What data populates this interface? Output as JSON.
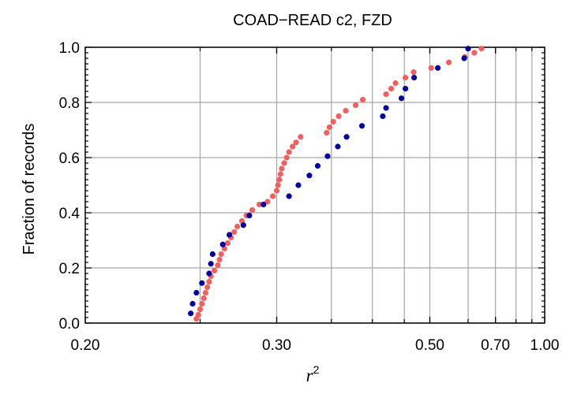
{
  "chart_data": {
    "type": "scatter",
    "title": "COAD−READ c2, FZD",
    "xlabel": "r",
    "xlabel_superscript": "2",
    "ylabel": "Fraction of records",
    "x_scale": "reciprocal",
    "xlim": [
      0.2,
      1.0
    ],
    "ylim": [
      0.0,
      1.0
    ],
    "x_ticks": [
      0.2,
      0.3,
      0.5,
      0.7,
      1.0
    ],
    "x_tick_labels": [
      "0.20",
      "0.30",
      "0.50",
      "0.70",
      "1.00"
    ],
    "x_gridlines": [
      0.25,
      0.3,
      0.35,
      0.4,
      0.45,
      0.5,
      0.6,
      0.7,
      0.8,
      0.9
    ],
    "y_ticks": [
      0.0,
      0.2,
      0.4,
      0.6,
      0.8,
      1.0
    ],
    "y_tick_labels": [
      "0.0",
      "0.2",
      "0.4",
      "0.6",
      "0.8",
      "1.0"
    ],
    "grid": true,
    "series": [
      {
        "color": "#f25f5f",
        "points": [
          [
            0.248,
            0.015
          ],
          [
            0.249,
            0.03
          ],
          [
            0.25,
            0.05
          ],
          [
            0.251,
            0.07
          ],
          [
            0.252,
            0.09
          ],
          [
            0.253,
            0.11
          ],
          [
            0.254,
            0.13
          ],
          [
            0.255,
            0.15
          ],
          [
            0.256,
            0.17
          ],
          [
            0.258,
            0.19
          ],
          [
            0.26,
            0.21
          ],
          [
            0.261,
            0.23
          ],
          [
            0.262,
            0.25
          ],
          [
            0.264,
            0.27
          ],
          [
            0.266,
            0.29
          ],
          [
            0.268,
            0.31
          ],
          [
            0.27,
            0.33
          ],
          [
            0.272,
            0.35
          ],
          [
            0.275,
            0.37
          ],
          [
            0.278,
            0.39
          ],
          [
            0.282,
            0.41
          ],
          [
            0.287,
            0.43
          ],
          [
            0.293,
            0.44
          ],
          [
            0.297,
            0.46
          ],
          [
            0.3,
            0.48
          ],
          [
            0.301,
            0.5
          ],
          [
            0.302,
            0.52
          ],
          [
            0.303,
            0.54
          ],
          [
            0.304,
            0.56
          ],
          [
            0.306,
            0.58
          ],
          [
            0.308,
            0.6
          ],
          [
            0.31,
            0.62
          ],
          [
            0.313,
            0.64
          ],
          [
            0.316,
            0.655
          ],
          [
            0.32,
            0.675
          ],
          [
            0.345,
            0.69
          ],
          [
            0.348,
            0.71
          ],
          [
            0.352,
            0.73
          ],
          [
            0.358,
            0.75
          ],
          [
            0.366,
            0.77
          ],
          [
            0.378,
            0.79
          ],
          [
            0.387,
            0.81
          ],
          [
            0.42,
            0.83
          ],
          [
            0.428,
            0.85
          ],
          [
            0.435,
            0.87
          ],
          [
            0.452,
            0.89
          ],
          [
            0.467,
            0.91
          ],
          [
            0.503,
            0.925
          ],
          [
            0.545,
            0.945
          ],
          [
            0.59,
            0.965
          ],
          [
            0.62,
            0.98
          ],
          [
            0.645,
            0.995
          ]
        ]
      },
      {
        "color": "#00009e",
        "points": [
          [
            0.245,
            0.035
          ],
          [
            0.246,
            0.07
          ],
          [
            0.248,
            0.11
          ],
          [
            0.251,
            0.145
          ],
          [
            0.255,
            0.18
          ],
          [
            0.256,
            0.215
          ],
          [
            0.257,
            0.25
          ],
          [
            0.263,
            0.285
          ],
          [
            0.267,
            0.32
          ],
          [
            0.276,
            0.355
          ],
          [
            0.28,
            0.39
          ],
          [
            0.29,
            0.43
          ],
          [
            0.31,
            0.46
          ],
          [
            0.318,
            0.5
          ],
          [
            0.328,
            0.535
          ],
          [
            0.336,
            0.57
          ],
          [
            0.346,
            0.605
          ],
          [
            0.357,
            0.64
          ],
          [
            0.367,
            0.675
          ],
          [
            0.386,
            0.715
          ],
          [
            0.415,
            0.75
          ],
          [
            0.42,
            0.78
          ],
          [
            0.445,
            0.815
          ],
          [
            0.452,
            0.85
          ],
          [
            0.468,
            0.89
          ],
          [
            0.518,
            0.925
          ],
          [
            0.588,
            0.96
          ],
          [
            0.6,
            0.995
          ]
        ]
      }
    ]
  }
}
